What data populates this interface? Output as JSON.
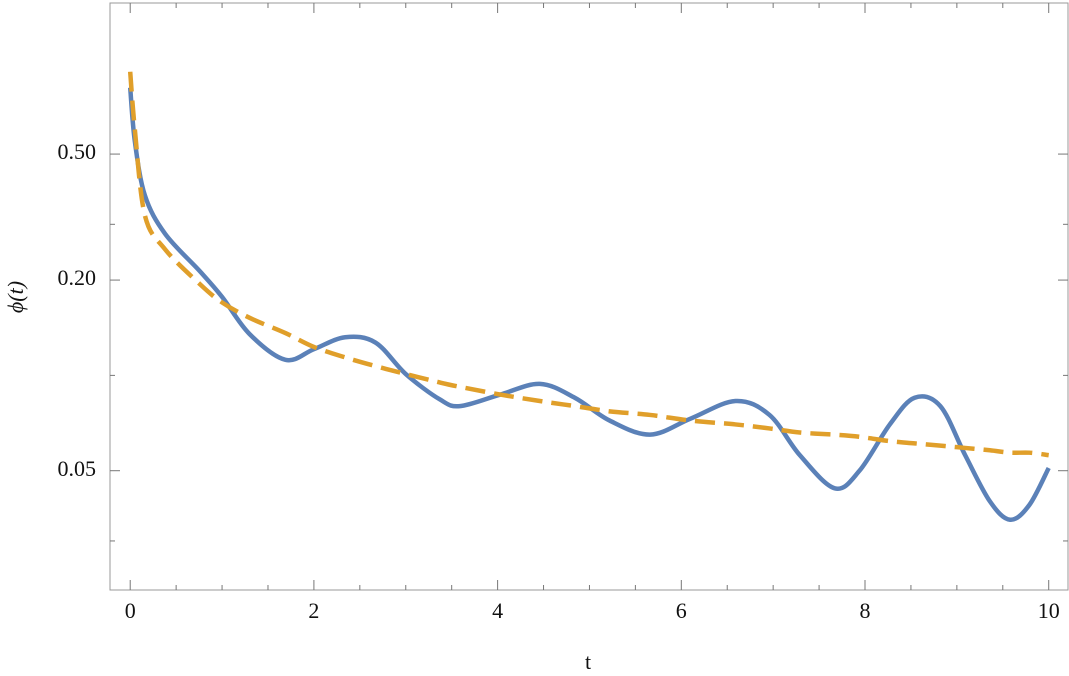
{
  "chart_data": {
    "type": "line",
    "x_label": "t",
    "y_label": "ϕ(t)",
    "x": [
      0,
      0.05,
      0.16,
      0.38,
      0.76,
      1,
      1.3,
      1.69,
      2,
      2.34,
      2.67,
      3,
      3.37,
      3.59,
      4.03,
      4.46,
      4.84,
      5.22,
      5.66,
      6.1,
      6.59,
      6.96,
      7.29,
      7.67,
      7.94,
      8.27,
      8.54,
      8.82,
      9.09,
      9.36,
      9.58,
      9.79,
      10
    ],
    "series": [
      {
        "color": "#5b81b8",
        "dash": false,
        "values": [
          0.81,
          0.55,
          0.37,
          0.28,
          0.213,
          0.177,
          0.135,
          0.112,
          0.121,
          0.132,
          0.127,
          0.101,
          0.084,
          0.08,
          0.087,
          0.094,
          0.085,
          0.072,
          0.065,
          0.073,
          0.083,
          0.075,
          0.056,
          0.044,
          0.05,
          0.07,
          0.085,
          0.08,
          0.056,
          0.04,
          0.035,
          0.039,
          0.051
        ]
      },
      {
        "color": "#e09f2a",
        "dash": true,
        "values": [
          0.91,
          0.6,
          0.32,
          0.25,
          0.194,
          0.17,
          0.152,
          0.136,
          0.123,
          0.114,
          0.107,
          0.101,
          0.095,
          0.092,
          0.087,
          0.083,
          0.08,
          0.077,
          0.075,
          0.072,
          0.07,
          0.068,
          0.066,
          0.065,
          0.064,
          0.062,
          0.061,
          0.06,
          0.059,
          0.058,
          0.057,
          0.057,
          0.056
        ]
      }
    ],
    "xlim": [
      -0.22,
      10.21
    ],
    "xticks": [
      0,
      2,
      4,
      6,
      8,
      10
    ],
    "xminorticks": [
      0.5,
      1,
      1.5,
      2.5,
      3,
      3.5,
      4.5,
      5,
      5.5,
      6.5,
      7,
      7.5,
      8.5,
      9,
      9.5
    ],
    "ylim": [
      0.021,
      1.5
    ],
    "ylog": true,
    "yticks": [
      0.05,
      {
        "value": 0.2,
        "label": "0.20"
      },
      {
        "value": 0.5,
        "label": "0.50"
      }
    ],
    "yminorticks": [
      0.03,
      0.1,
      0.3
    ]
  }
}
